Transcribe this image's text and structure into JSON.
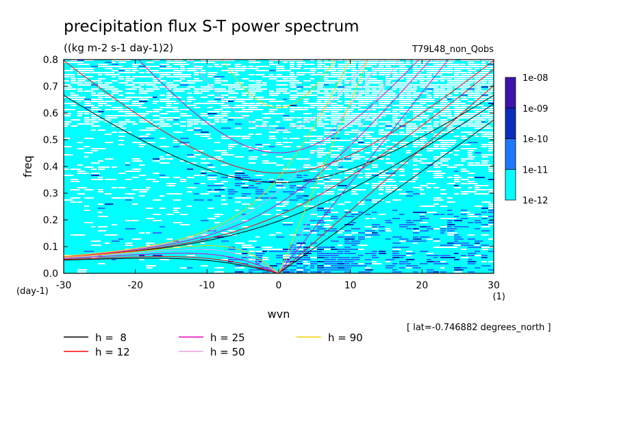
{
  "chart_data": {
    "type": "heatmap",
    "title": "precipitation flux S-T power spectrum",
    "units": "((kg m-2 s-1 day-1)2)",
    "run_label": "T79L48_non_Qobs",
    "xlabel": "wvn",
    "ylabel": "freq",
    "x_unit": "(1)",
    "y_unit": "(day-1)",
    "xlim": [
      -30,
      30
    ],
    "ylim": [
      0,
      0.8
    ],
    "x_ticks": [
      "-30",
      "-20",
      "-10",
      "0",
      "10",
      "20",
      "30"
    ],
    "x_tick_values": [
      -30,
      -20,
      -10,
      0,
      10,
      20,
      30
    ],
    "y_ticks": [
      "0.0",
      "0.1",
      "0.2",
      "0.3",
      "0.4",
      "0.5",
      "0.6",
      "0.7",
      "0.8"
    ],
    "y_tick_values": [
      0,
      0.1,
      0.2,
      0.3,
      0.4,
      0.5,
      0.6,
      0.7,
      0.8
    ],
    "annotation": "[ lat=-0.746882 degrees_north ]",
    "colorbar": {
      "levels": [
        "1e-12",
        "1e-11",
        "1e-10",
        "1e-09",
        "1e-08"
      ],
      "colors": [
        "#00ffff",
        "#1e78ff",
        "#0a2dbe",
        "#3c14aa"
      ]
    },
    "dispersion_curves": [
      {
        "label": "h =  8",
        "h": 8,
        "color": "#000000"
      },
      {
        "label": "h = 12",
        "h": 12,
        "color": "#ff0000"
      },
      {
        "label": "h = 25",
        "h": 25,
        "color": "#e600b4"
      },
      {
        "label": "h = 50",
        "h": 50,
        "color": "#e6a0e6"
      },
      {
        "label": "h = 90",
        "h": 90,
        "color": "#f0d200"
      }
    ]
  }
}
